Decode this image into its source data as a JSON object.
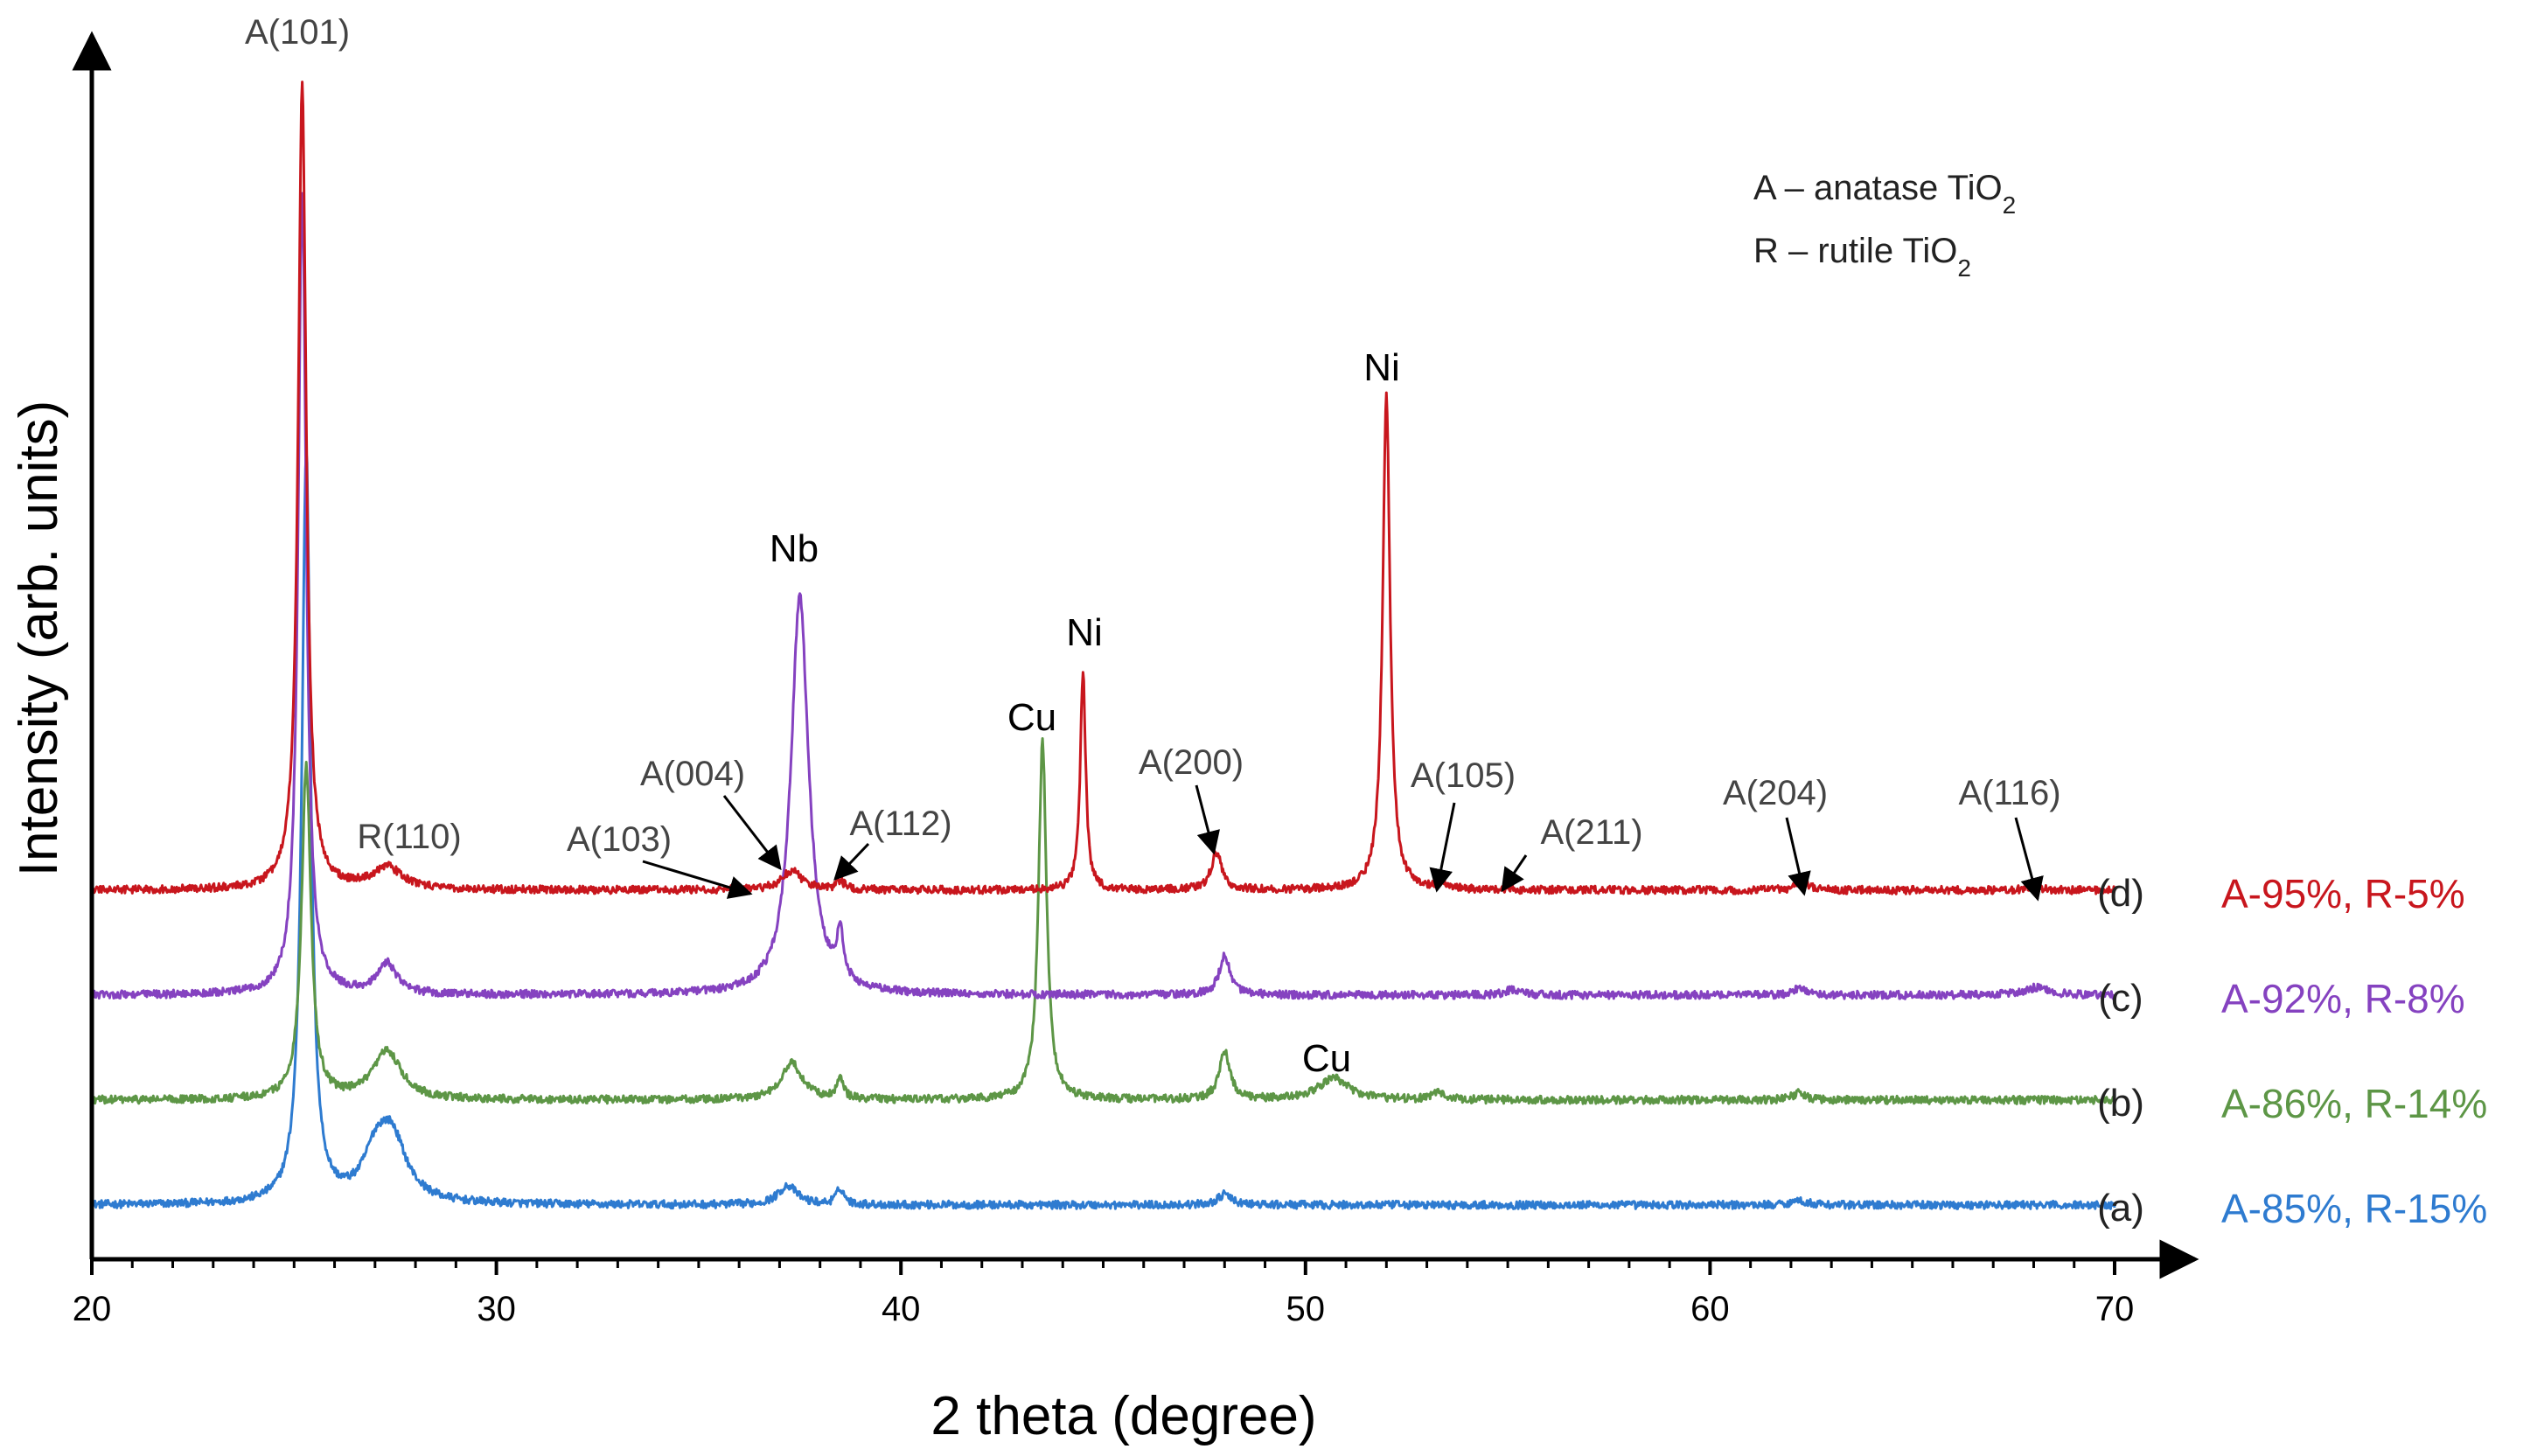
{
  "chart_data": {
    "type": "line",
    "title": "",
    "xlabel": "2 theta (degree)",
    "ylabel": "Intensity (arb. units)",
    "xlim": [
      20,
      70
    ],
    "x_ticks": [
      "20",
      "30",
      "40",
      "50",
      "60",
      "70"
    ],
    "legend": {
      "line1_prefix": "A – anatase TiO",
      "line1_sub": "2",
      "line2_prefix": "R – rutile TiO",
      "line2_sub": "2"
    },
    "series": [
      {
        "id": "(a)",
        "name": "A-85%, R-15%",
        "color": "#2e7bd0",
        "offset": 0,
        "peaks": [
          {
            "x": 25.3,
            "h": 0.86,
            "w": 0.13
          },
          {
            "x": 27.4,
            "h": 0.075,
            "w": 0.45
          },
          {
            "x": 27.0,
            "h": 0.04,
            "w": 0.35
          },
          {
            "x": 37.2,
            "h": 0.022,
            "w": 0.28
          },
          {
            "x": 38.5,
            "h": 0.018,
            "w": 0.12
          },
          {
            "x": 48.0,
            "h": 0.012,
            "w": 0.2
          },
          {
            "x": 62.2,
            "h": 0.005,
            "w": 0.25
          }
        ]
      },
      {
        "id": "(b)",
        "name": "A-86%, R-14%",
        "color": "#5d9646",
        "offset": 0.12,
        "peaks": [
          {
            "x": 25.3,
            "h": 0.38,
            "w": 0.14
          },
          {
            "x": 27.3,
            "h": 0.055,
            "w": 0.42
          },
          {
            "x": 37.3,
            "h": 0.042,
            "w": 0.32
          },
          {
            "x": 38.5,
            "h": 0.022,
            "w": 0.1
          },
          {
            "x": 43.5,
            "h": 0.41,
            "w": 0.12
          },
          {
            "x": 48.0,
            "h": 0.055,
            "w": 0.16
          },
          {
            "x": 50.7,
            "h": 0.025,
            "w": 0.45
          },
          {
            "x": 53.3,
            "h": 0.008,
            "w": 0.2
          },
          {
            "x": 62.2,
            "h": 0.008,
            "w": 0.2
          }
        ]
      },
      {
        "id": "(c)",
        "name": "A-92%, R-8%",
        "color": "#8542c0",
        "offset": 0.24,
        "peaks": [
          {
            "x": 25.2,
            "h": 0.92,
            "w": 0.12
          },
          {
            "x": 27.3,
            "h": 0.035,
            "w": 0.28
          },
          {
            "x": 37.5,
            "h": 0.455,
            "w": 0.26
          },
          {
            "x": 38.5,
            "h": 0.055,
            "w": 0.1
          },
          {
            "x": 48.0,
            "h": 0.045,
            "w": 0.16
          },
          {
            "x": 55.1,
            "h": 0.006,
            "w": 0.2
          },
          {
            "x": 62.2,
            "h": 0.007,
            "w": 0.2
          },
          {
            "x": 68.1,
            "h": 0.009,
            "w": 0.35
          }
        ]
      },
      {
        "id": "(d)",
        "name": "A-95%, R-5%",
        "color": "#c8161d",
        "offset": 0.36,
        "peaks": [
          {
            "x": 25.2,
            "h": 0.92,
            "w": 0.12
          },
          {
            "x": 27.3,
            "h": 0.025,
            "w": 0.45
          },
          {
            "x": 37.3,
            "h": 0.022,
            "w": 0.3
          },
          {
            "x": 38.5,
            "h": 0.01,
            "w": 0.12
          },
          {
            "x": 44.5,
            "h": 0.25,
            "w": 0.08
          },
          {
            "x": 47.8,
            "h": 0.042,
            "w": 0.16
          },
          {
            "x": 52.0,
            "h": 0.565,
            "w": 0.11
          },
          {
            "x": 53.4,
            "h": 0.005,
            "w": 0.2
          },
          {
            "x": 62.3,
            "h": 0.009,
            "w": 0.2
          },
          {
            "x": 68.0,
            "h": 0.004,
            "w": 0.2
          }
        ]
      }
    ],
    "annotations": {
      "peaks": [
        {
          "label": "A(101)"
        },
        {
          "label": "R(110)"
        },
        {
          "label": "A(103)"
        },
        {
          "label": "A(004)"
        },
        {
          "label": "A(112)"
        },
        {
          "label": "A(200)"
        },
        {
          "label": "A(105)"
        },
        {
          "label": "A(211)"
        },
        {
          "label": "A(204)"
        },
        {
          "label": "A(116)"
        }
      ],
      "phases": [
        {
          "label": "Nb"
        },
        {
          "label": "Cu"
        },
        {
          "label": "Ni"
        },
        {
          "label": "Ni"
        },
        {
          "label": "Cu"
        }
      ]
    }
  }
}
